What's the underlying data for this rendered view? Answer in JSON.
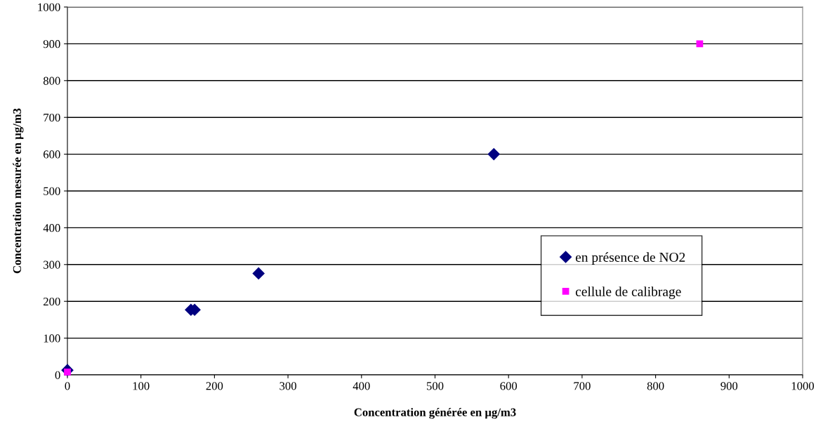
{
  "chart_data": {
    "type": "scatter",
    "xlabel": "Concentration générée en µg/m3",
    "ylabel": "Concentration mesurée en µg/m3",
    "series": [
      {
        "name": "en présence de NO2",
        "color": "#000080",
        "marker": "diamond",
        "x": [
          0,
          168,
          173,
          260,
          580
        ],
        "values": [
          13,
          177,
          177,
          276,
          600
        ]
      },
      {
        "name": "cellule de calibrage",
        "color": "#ff00ff",
        "marker": "square",
        "x": [
          0,
          860
        ],
        "values": [
          8,
          900
        ]
      }
    ],
    "xlim": [
      0,
      1000
    ],
    "xticks": [
      0,
      100,
      200,
      300,
      400,
      500,
      600,
      700,
      800,
      900,
      1000
    ],
    "ylim": [
      0,
      1000
    ],
    "yticks": [
      0,
      100,
      200,
      300,
      400,
      500,
      600,
      700,
      800,
      900,
      1000
    ],
    "grid": "y",
    "legend": "right"
  }
}
